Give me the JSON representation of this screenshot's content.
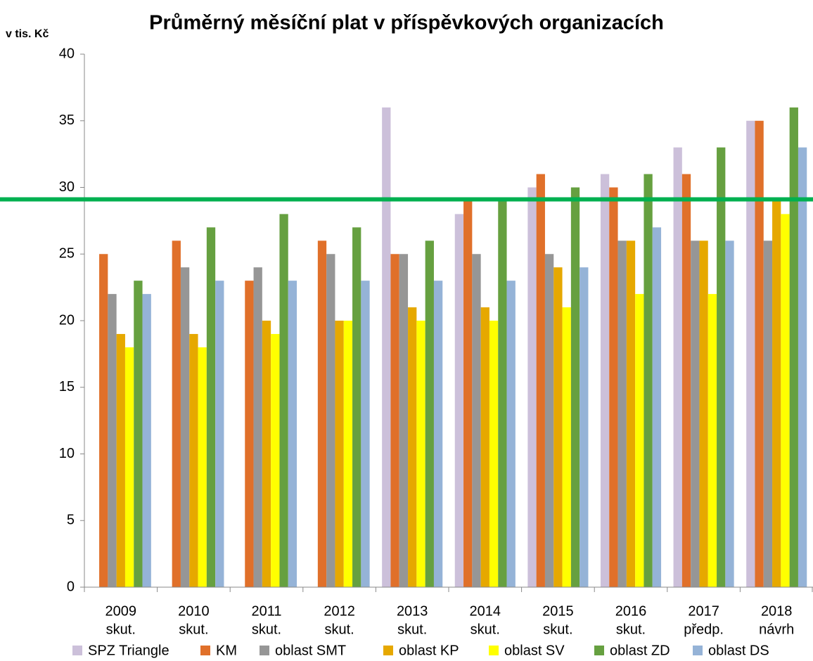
{
  "chart_data": {
    "type": "bar",
    "title": "Průměrný měsíční plat v příspěvkových organizacích",
    "y_label": "v tis. Kč",
    "categories": [
      [
        "2009",
        "skut."
      ],
      [
        "2010",
        "skut."
      ],
      [
        "2011",
        "skut."
      ],
      [
        "2012",
        "skut."
      ],
      [
        "2013",
        "skut."
      ],
      [
        "2014",
        "skut."
      ],
      [
        "2015",
        "skut."
      ],
      [
        "2016",
        "skut."
      ],
      [
        "2017",
        "předp."
      ],
      [
        "2018",
        "návrh"
      ]
    ],
    "series": [
      {
        "name": "SPZ Triangle",
        "color": "#ccc0da",
        "values": [
          null,
          null,
          null,
          null,
          36,
          28,
          30,
          31,
          33,
          35
        ]
      },
      {
        "name": "KM",
        "color": "#e0702a",
        "values": [
          25,
          26,
          23,
          26,
          25,
          29,
          31,
          30,
          31,
          35
        ]
      },
      {
        "name": "oblast SMT",
        "color": "#969696",
        "values": [
          22,
          24,
          24,
          25,
          25,
          25,
          25,
          26,
          26,
          26
        ]
      },
      {
        "name": "oblast KP",
        "color": "#e6a800",
        "values": [
          19,
          19,
          20,
          20,
          21,
          21,
          24,
          26,
          26,
          29
        ]
      },
      {
        "name": "oblast SV",
        "color": "#ffff00",
        "values": [
          18,
          18,
          19,
          20,
          20,
          20,
          21,
          22,
          22,
          28
        ]
      },
      {
        "name": "oblast ZD",
        "color": "#66a040",
        "values": [
          23,
          27,
          28,
          27,
          26,
          29,
          30,
          31,
          33,
          36
        ]
      },
      {
        "name": "oblast DS",
        "color": "#95b3d7",
        "values": [
          22,
          23,
          23,
          23,
          23,
          23,
          24,
          27,
          26,
          33
        ]
      }
    ],
    "reference_line": {
      "value": 29.1,
      "color": "#00b050"
    },
    "ylim": [
      0,
      40
    ],
    "yticks": [
      0,
      5,
      10,
      15,
      20,
      25,
      30,
      35,
      40
    ],
    "grid": false
  }
}
